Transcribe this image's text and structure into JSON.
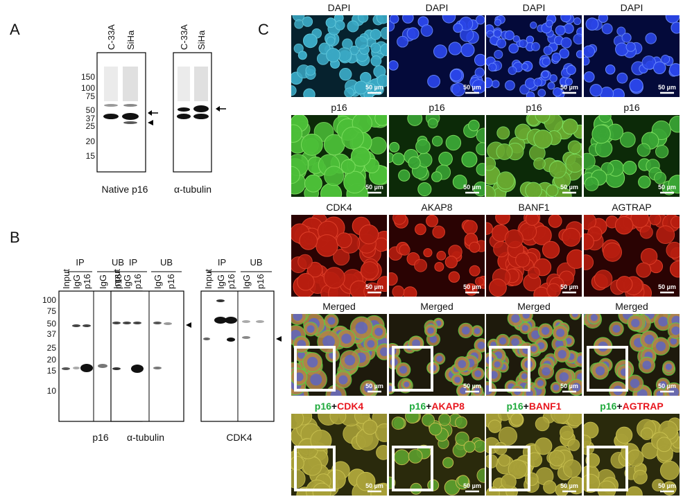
{
  "panel_a": {
    "label": "A",
    "lanes": [
      "C-33A",
      "SiHa"
    ],
    "markers": [
      "150",
      "100",
      "75",
      "50",
      "37",
      "25",
      "20",
      "15"
    ],
    "captions": [
      "Native p16",
      "α-tubulin"
    ]
  },
  "panel_b": {
    "label": "B",
    "groups": [
      "IP",
      "UB"
    ],
    "lanes": [
      "Input",
      "IgG",
      "p16",
      "IgG",
      "p16"
    ],
    "markers": [
      "100",
      "75",
      "50",
      "37",
      "25",
      "20",
      "15",
      "10"
    ],
    "captions": [
      "p16",
      "α-tubulin",
      "CDK4"
    ]
  },
  "panel_c": {
    "label": "C",
    "scale_bar": "50 µm",
    "rows": [
      {
        "titles": [
          "DAPI",
          "DAPI",
          "DAPI",
          "DAPI"
        ]
      },
      {
        "titles": [
          "p16",
          "p16",
          "p16",
          "p16"
        ]
      },
      {
        "titles": [
          "CDK4",
          "AKAP8",
          "BANF1",
          "AGTRAP"
        ]
      },
      {
        "titles": [
          "Merged",
          "Merged",
          "Merged",
          "Merged"
        ]
      }
    ],
    "overlay_labels": [
      {
        "green": "p16",
        "plus": "+",
        "red": "CDK4"
      },
      {
        "green": "p16",
        "plus": "+",
        "red": "AKAP8"
      },
      {
        "green": "p16",
        "plus": "+",
        "red": "BANF1"
      },
      {
        "green": "p16",
        "plus": "+",
        "red": "AGTRAP"
      }
    ]
  }
}
